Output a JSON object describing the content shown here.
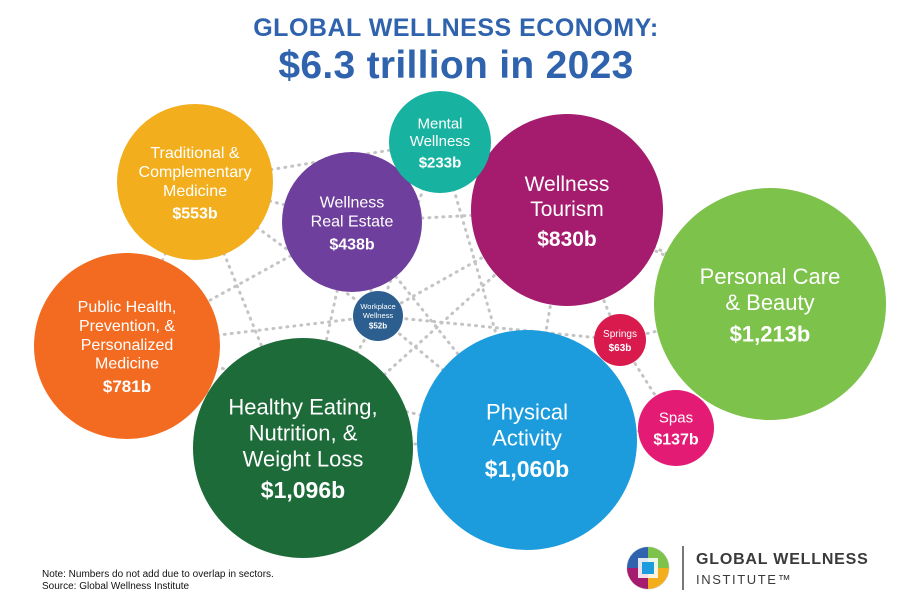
{
  "title": {
    "line1": "GLOBAL WELLNESS ECONOMY:",
    "line2": "$6.3 trillion in 2023"
  },
  "chart_data": {
    "type": "bubble",
    "title": "GLOBAL WELLNESS ECONOMY: $6.3 trillion in 2023",
    "unit": "billion USD",
    "series": [
      {
        "label_lines": [
          "Personal Care",
          "& Beauty"
        ],
        "value_label": "$1,213b",
        "value": 1213,
        "color": "#7dc24b"
      },
      {
        "label_lines": [
          "Healthy Eating,",
          "Nutrition, &",
          "Weight Loss"
        ],
        "value_label": "$1,096b",
        "value": 1096,
        "color": "#1e6b3a"
      },
      {
        "label_lines": [
          "Physical",
          "Activity"
        ],
        "value_label": "$1,060b",
        "value": 1060,
        "color": "#1c9cdc"
      },
      {
        "label_lines": [
          "Wellness",
          "Tourism"
        ],
        "value_label": "$830b",
        "value": 830,
        "color": "#a51c6f"
      },
      {
        "label_lines": [
          "Public Health,",
          "Prevention, &",
          "Personalized",
          "Medicine"
        ],
        "value_label": "$781b",
        "value": 781,
        "color": "#f26b21"
      },
      {
        "label_lines": [
          "Traditional &",
          "Complementary",
          "Medicine"
        ],
        "value_label": "$553b",
        "value": 553,
        "color": "#f2ae1c"
      },
      {
        "label_lines": [
          "Wellness",
          "Real Estate"
        ],
        "value_label": "$438b",
        "value": 438,
        "color": "#6e3f9c"
      },
      {
        "label_lines": [
          "Mental",
          "Wellness"
        ],
        "value_label": "$233b",
        "value": 233,
        "color": "#17b3a0"
      },
      {
        "label_lines": [
          "Spas"
        ],
        "value_label": "$137b",
        "value": 137,
        "color": "#e31b74"
      },
      {
        "label_lines": [
          "Springs"
        ],
        "value_label": "$63b",
        "value": 63,
        "color": "#d91a4d"
      },
      {
        "label_lines": [
          "Workplace",
          "Wellness"
        ],
        "value_label": "$52b",
        "value": 52,
        "color": "#2c5f8f"
      }
    ]
  },
  "note": {
    "line1": "Note: Numbers do not add due to overlap in sectors.",
    "line2": "Source: Global Wellness Institute"
  },
  "logo": {
    "name": "GLOBAL WELLNESS",
    "sub": "INSTITUTE™"
  },
  "colors": {
    "title": "#2f63ad",
    "connector": "#c4c4c4",
    "bubble_text": "#ffffff"
  }
}
